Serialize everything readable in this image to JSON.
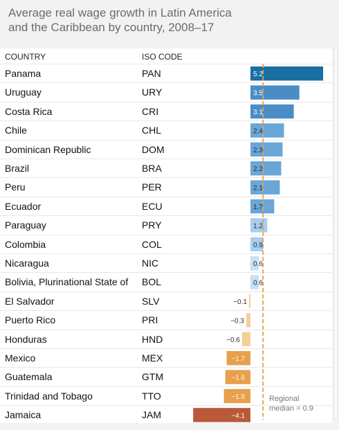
{
  "title_lines": [
    "Average real wage growth in Latin America",
    "and the Caribbean by country, 2008–17"
  ],
  "columns": {
    "country": "COUNTRY",
    "iso": "ISO CODE"
  },
  "median_label_lines": [
    "Regional",
    "median = 0.9"
  ],
  "colors": {
    "highest": "#1a6fa3",
    "high": "#4a8dc4",
    "mid": "#6aa6d6",
    "low": "#a9cdee",
    "very_low": "#c9e0f5",
    "neg_small": "#f5cf98",
    "neg_mid": "#e8a04b",
    "neg_large": "#b85a3a",
    "median_line": "#e8a04b"
  },
  "chart_data": {
    "type": "bar",
    "orientation": "horizontal",
    "title": "Average real wage growth in Latin America and the Caribbean by country, 2008–17",
    "categories": [
      "Panama",
      "Uruguay",
      "Costa Rica",
      "Chile",
      "Dominican Republic",
      "Brazil",
      "Peru",
      "Ecuador",
      "Paraguay",
      "Colombia",
      "Nicaragua",
      "Bolivia, Plurinational State of",
      "El Salvador",
      "Puerto Rico",
      "Honduras",
      "Mexico",
      "Guatemala",
      "Trinidad and Tobago",
      "Jamaica"
    ],
    "iso": [
      "PAN",
      "URY",
      "CRI",
      "CHL",
      "DOM",
      "BRA",
      "PER",
      "ECU",
      "PRY",
      "COL",
      "NIC",
      "BOL",
      "SLV",
      "PRI",
      "HND",
      "MEX",
      "GTM",
      "TTO",
      "JAM"
    ],
    "values": [
      5.2,
      3.5,
      3.1,
      2.4,
      2.3,
      2.2,
      2.1,
      1.7,
      1.2,
      0.9,
      0.6,
      0.6,
      -0.1,
      -0.3,
      -0.6,
      -1.7,
      -1.8,
      -1.9,
      -4.1
    ],
    "labels": [
      "5.2",
      "3.5",
      "3.1",
      "2.4",
      "2.3",
      "2.2",
      "2.1",
      "1.7",
      "1.2",
      "0.9",
      "0.6",
      "0.6",
      "−0.1",
      "−0.3",
      "−0.6",
      "−1.7",
      "−1.8",
      "−1.9",
      "−4.1"
    ],
    "median": 0.9,
    "xlim": [
      -4.1,
      5.2
    ]
  }
}
